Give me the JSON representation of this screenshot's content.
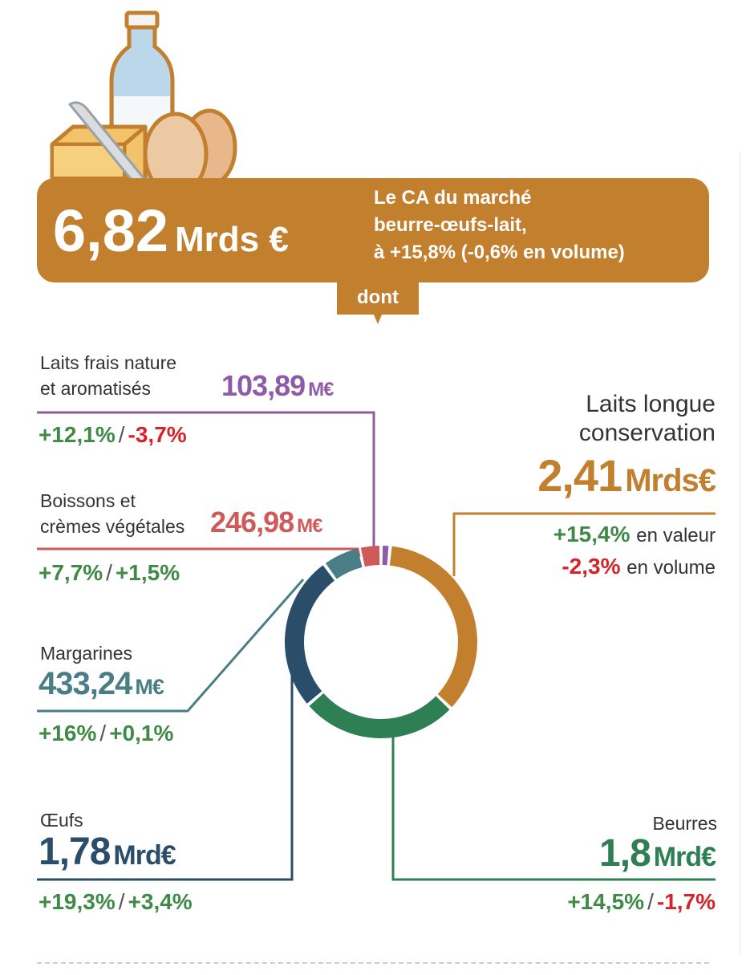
{
  "header": {
    "total_value": "6,82",
    "total_unit": "Mrds €",
    "line1": "Le CA du marché",
    "line2": "beurre-œufs-lait,",
    "line3": "à +15,8% (-0,6% en volume)",
    "dont": "dont"
  },
  "segments": {
    "laits_frais": {
      "label1": "Laits frais nature",
      "label2": "et aromatisés",
      "value": "103,89",
      "unit": "M€",
      "change_value": "+12,1%",
      "sep": "/",
      "change_volume": "-3,7%"
    },
    "boissons": {
      "label1": "Boissons et",
      "label2": "crèmes végétales",
      "value": "246,98",
      "unit": "M€",
      "change_value": "+7,7%",
      "sep": "/",
      "change_volume": "+1,5%"
    },
    "margarines": {
      "label1": "Margarines",
      "value": "433,24",
      "unit": "M€",
      "change_value": "+16%",
      "sep": "/",
      "change_volume": "+0,1%"
    },
    "oeufs": {
      "label1": "Œufs",
      "value": "1,78",
      "unit": "Mrd€",
      "change_value": "+19,3%",
      "sep": "/",
      "change_volume": "+3,4%"
    },
    "laits_longue": {
      "label1": "Laits longue",
      "label2": "conservation",
      "value": "2,41",
      "unit": "Mrds€",
      "change_value": "+15,4%",
      "change_value_text": "en valeur",
      "change_volume": "-2,3%",
      "change_volume_text": "en volume"
    },
    "beurres": {
      "label1": "Beurres",
      "value": "1,8",
      "unit": "Mrd€",
      "change_value": "+14,5%",
      "sep": "/",
      "change_volume": "-1,7%"
    }
  },
  "colors": {
    "banner": "#c27f2e",
    "laits_frais": "#8e5ba6",
    "boissons": "#cf5a5a",
    "margarines": "#4a7e87",
    "oeufs": "#2a4d6a",
    "laits_longue": "#c27f2e",
    "beurres": "#2f7f55",
    "positive": "#3e8a46",
    "negative": "#d6232a"
  },
  "chart_data": {
    "type": "pie",
    "donut": true,
    "unit": "M€",
    "total": 6820,
    "categories": [
      "Laits frais nature et aromatisés",
      "Laits longue conservation",
      "Beurres",
      "Œufs",
      "Margarines",
      "Boissons et crèmes végétales"
    ],
    "values": [
      103.89,
      2410,
      1800,
      1780,
      433.24,
      246.98
    ],
    "colors": [
      "#8e5ba6",
      "#c27f2e",
      "#2f7f55",
      "#2a4d6a",
      "#4a7e87",
      "#cf5a5a"
    ]
  }
}
